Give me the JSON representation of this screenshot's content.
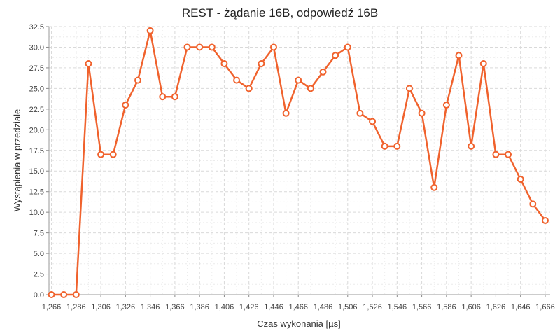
{
  "chart_data": {
    "type": "line",
    "title": "REST - żądanie 16B, odpowiedź 16B",
    "xlabel": "Czas wykonania [µs]",
    "ylabel": "Wystąpienia w przedziale",
    "x_tick_labels": [
      "1,266",
      "1,286",
      "1,306",
      "1,326",
      "1,346",
      "1,366",
      "1,386",
      "1,406",
      "1,426",
      "1,446",
      "1,466",
      "1,486",
      "1,506",
      "1,526",
      "1,546",
      "1,566",
      "1,586",
      "1,606",
      "1,626",
      "1,646",
      "1,666"
    ],
    "y_tick_labels": [
      "0.0",
      "2.5",
      "5.0",
      "7.5",
      "10.0",
      "12.5",
      "15.0",
      "17.5",
      "20.0",
      "22.5",
      "25.0",
      "27.5",
      "30.0",
      "32.5"
    ],
    "xlim": [
      1264,
      1670
    ],
    "ylim": [
      0,
      32.5
    ],
    "grid": true,
    "color": "#f0622d",
    "series": [
      {
        "x": [
          1266,
          1276,
          1286,
          1296,
          1306,
          1316,
          1326,
          1336,
          1346,
          1356,
          1366,
          1376,
          1386,
          1396,
          1406,
          1416,
          1426,
          1436,
          1446,
          1456,
          1466,
          1476,
          1486,
          1496,
          1506,
          1516,
          1526,
          1536,
          1546,
          1556,
          1566,
          1576,
          1586,
          1596,
          1606,
          1616,
          1626,
          1636,
          1646,
          1656,
          1666
        ],
        "values": [
          0,
          0,
          0,
          28,
          17,
          17,
          23,
          26,
          32,
          24,
          24,
          30,
          30,
          30,
          28,
          26,
          25,
          28,
          30,
          22,
          26,
          25,
          27,
          29,
          30,
          22,
          21,
          18,
          18,
          25,
          22,
          13,
          23,
          29,
          18,
          28,
          17,
          17,
          14,
          11,
          9
        ]
      }
    ]
  }
}
